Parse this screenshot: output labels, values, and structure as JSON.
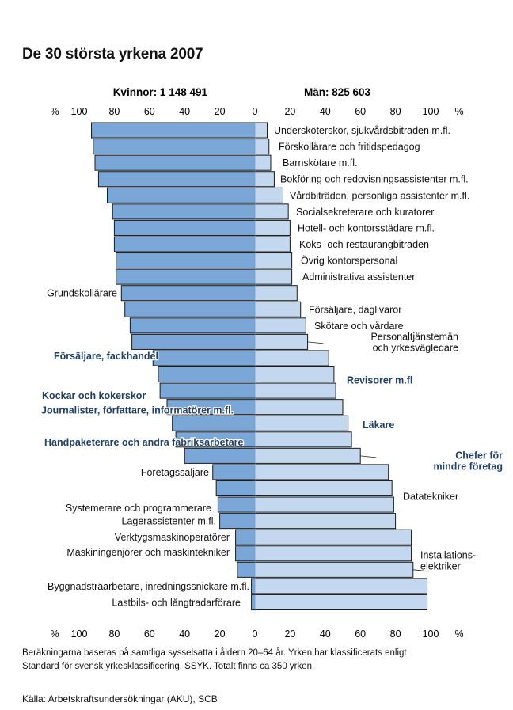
{
  "title": "De 30 största yrkena 2007",
  "footnote": {
    "line1": "Beräkningarna baseras på samtliga sysselsatta i åldern 20–64 år. Yrken har klassificerats enligt",
    "line2": "Standard för svensk yrkesklassificering, SSYK. Totalt finns ca 350 yrken."
  },
  "source": "Källa: Arbetskraftsundersökningar (AKU), SCB",
  "colors": {
    "women": "#7aa7d8",
    "men": "#c3d7ee",
    "outline": "#1a1a1a",
    "highlight_text": "#1f3f66"
  },
  "chart_data": {
    "type": "bar",
    "orientation": "horizontal-diverging",
    "group_labels": {
      "women": "Kvinnor: 1 148 491",
      "men": "Män: 825 603"
    },
    "axis_unit": "%",
    "axis_ticks_left": [
      "100",
      "80",
      "60",
      "40",
      "20",
      "0"
    ],
    "axis_ticks_right": [
      "20",
      "40",
      "60",
      "80",
      "100"
    ],
    "xlim": [
      0,
      100
    ],
    "categories": [
      {
        "label": "Undersköterskor, sjukvårdsbiträden m.fl.",
        "women": 93,
        "men": 7
      },
      {
        "label": "Förskollärare och fritidspedagog",
        "women": 92,
        "men": 8
      },
      {
        "label": "Barnskötare m.fl.",
        "women": 91,
        "men": 9
      },
      {
        "label": "Bokföring och redovisningsassistenter m.fl.",
        "women": 89,
        "men": 11
      },
      {
        "label": "Vårdbiträden, personliga assistenter m.fl.",
        "women": 84,
        "men": 16
      },
      {
        "label": "Socialsekreterare och kuratorer",
        "women": 81,
        "men": 19
      },
      {
        "label": "Hotell- och kontorsstädare m.fl.",
        "women": 80,
        "men": 20
      },
      {
        "label": "Köks- och restaurangbiträden",
        "women": 80,
        "men": 20
      },
      {
        "label": "Övrig kontorspersonal",
        "women": 79,
        "men": 21
      },
      {
        "label": "Administrativa assistenter",
        "women": 79,
        "men": 21
      },
      {
        "label": "Grundskollärare",
        "women": 76,
        "men": 24
      },
      {
        "label": "Försäljare, daglivaror",
        "women": 74,
        "men": 26
      },
      {
        "label": "Skötare och vårdare",
        "women": 71,
        "men": 29
      },
      {
        "label": "Personaltjänstemän och yrkesvägledare",
        "women": 70,
        "men": 30
      },
      {
        "label": "Försäljare, fackhandel",
        "women": 58,
        "men": 42
      },
      {
        "label": "Revisorer m.fl",
        "women": 55,
        "men": 45
      },
      {
        "label": "Kockar och kokerskor",
        "women": 54,
        "men": 46
      },
      {
        "label": "Journalister, författare, informatörer m.fl.",
        "women": 50,
        "men": 50
      },
      {
        "label": "Läkare",
        "women": 47,
        "men": 53
      },
      {
        "label": "Handpaketerare och andra fabriksarbetare",
        "women": 45,
        "men": 55
      },
      {
        "label": "Chefer för mindre företag",
        "women": 40,
        "men": 60
      },
      {
        "label": "Företagssäljare",
        "women": 24,
        "men": 76
      },
      {
        "label": "Datatekniker",
        "women": 22,
        "men": 78
      },
      {
        "label": "Systemerare och programmerare",
        "women": 21,
        "men": 79
      },
      {
        "label": "Lagerassistenter m.fl.",
        "women": 20,
        "men": 80
      },
      {
        "label": "Verktygsmaskinoperatörer",
        "women": 11,
        "men": 89
      },
      {
        "label": "Maskiningenjörer och maskintekniker",
        "women": 11,
        "men": 89
      },
      {
        "label": "Installationselektriker",
        "women": 10,
        "men": 90
      },
      {
        "label": "Byggnadsträarbetare, inredningssnickare m.fl.",
        "women": 2,
        "men": 98
      },
      {
        "label": "Lastbils- och långtradarförare",
        "women": 2,
        "men": 98
      }
    ],
    "label_lines": {
      "Personaltjänstemän och yrkesvägledare": [
        "Personaltjänstemän",
        "och yrkesvägledare"
      ],
      "Chefer för mindre företag": [
        "Chefer för",
        "mindre företag"
      ],
      "Installationselektriker": [
        "Installations-",
        "elektriker"
      ]
    },
    "highlighted": [
      "Försäljare, fackhandel",
      "Revisorer m.fl",
      "Kockar och kokerskor",
      "Journalister, författare, informatörer m.fl.",
      "Läkare",
      "Handpaketerare och andra fabriksarbetare",
      "Chefer för mindre företag"
    ]
  }
}
